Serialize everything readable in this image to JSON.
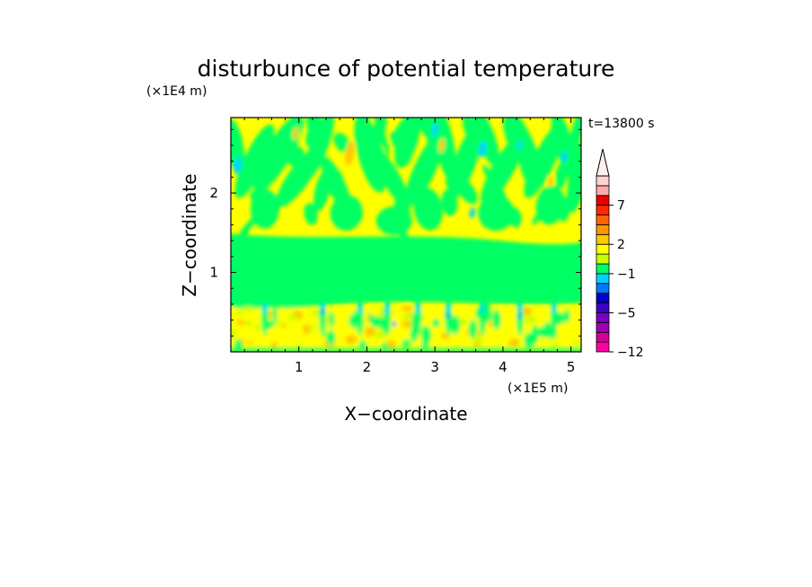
{
  "chart_data": {
    "type": "heatmap",
    "title": "disturbunce of potential temperature",
    "xlabel": "X−coordinate",
    "ylabel": "Z−coordinate",
    "x_unit": "(×1E5 m)",
    "y_unit": "(×1E4 m)",
    "time_label": "t=13800 s",
    "xlim": [
      0,
      5.15
    ],
    "ylim": [
      0,
      2.95
    ],
    "x_ticks": [
      1,
      2,
      3,
      4,
      5
    ],
    "y_ticks": [
      1,
      2
    ],
    "x_tick_labels": [
      "1",
      "2",
      "3",
      "4",
      "5"
    ],
    "y_tick_labels": [
      "1",
      "2"
    ],
    "colorbar": {
      "levels": [
        -12,
        -10,
        -8,
        -7,
        -5,
        -4,
        -3,
        -2,
        -1,
        0,
        1,
        2,
        3,
        5,
        6,
        7,
        8,
        10
      ],
      "colors": [
        "#ff00a0",
        "#d20096",
        "#a000b4",
        "#7800c8",
        "#3c00c8",
        "#0000c8",
        "#0078ff",
        "#00d2ff",
        "#00ff64",
        "#c8ff00",
        "#ffff00",
        "#ffc800",
        "#ff9600",
        "#ff6400",
        "#ff2800",
        "#e60000",
        "#ffaaaa",
        "#ffd2d2"
      ],
      "tick_levels": [
        -12,
        -5,
        -1,
        2,
        7
      ],
      "tick_labels": [
        "−12",
        "−5",
        "−1",
        "2",
        "7"
      ],
      "extend": "max"
    },
    "grid": false,
    "legend": "colorbar-right"
  }
}
